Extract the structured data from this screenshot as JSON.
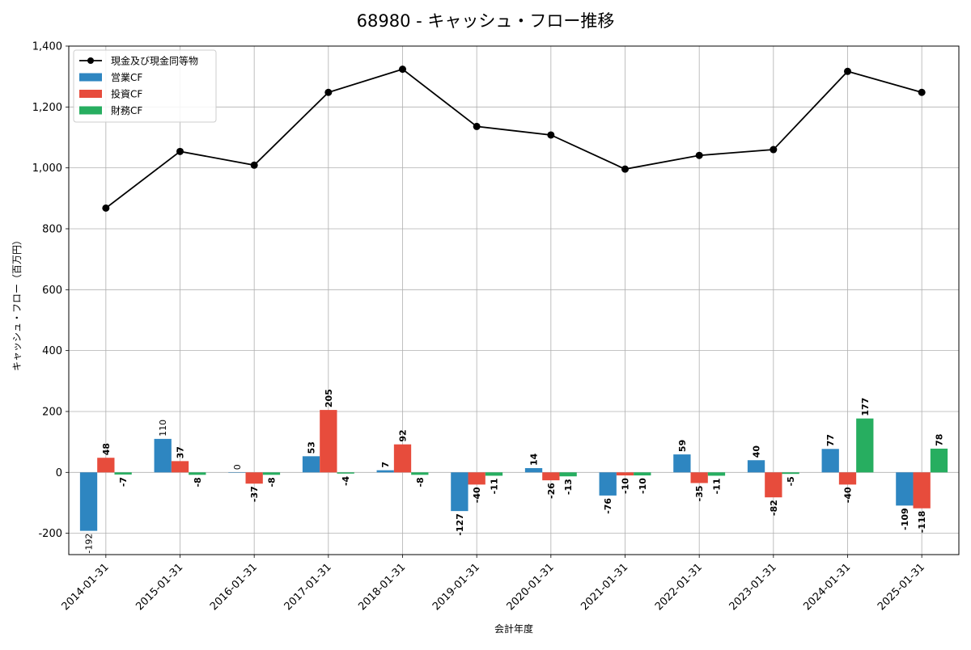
{
  "chart_data": {
    "type": "bar",
    "title": "68980 - キャッシュ・フロー推移",
    "xlabel": "会計年度",
    "ylabel": "キャッシュ・フロー（百万円）",
    "ylim": [
      -270,
      1400
    ],
    "yticks": [
      -200,
      0,
      200,
      400,
      600,
      800,
      1000,
      1200,
      1400
    ],
    "ytick_labels": [
      "-200",
      "0",
      "200",
      "400",
      "600",
      "800",
      "1,000",
      "1,200",
      "1,400"
    ],
    "grid": true,
    "legend_position": "top-left",
    "categories": [
      "2014-01-31",
      "2015-01-31",
      "2016-01-31",
      "2017-01-31",
      "2018-01-31",
      "2019-01-31",
      "2020-01-31",
      "2021-01-31",
      "2022-01-31",
      "2023-01-31",
      "2024-01-31",
      "2025-01-31"
    ],
    "line": {
      "name": "現金及び現金同等物",
      "color": "#000000",
      "values": [
        868,
        1054,
        1009,
        1248,
        1324,
        1136,
        1108,
        996,
        1041,
        1060,
        1317,
        1248
      ]
    },
    "series": [
      {
        "name": "営業CF",
        "color": "#2e86c1",
        "values": [
          -192,
          110,
          0,
          53,
          7,
          -127,
          14,
          -76,
          59,
          40,
          77,
          -109
        ],
        "labels": [
          "-192",
          "110",
          "0",
          "53",
          "7",
          "-127",
          "14",
          "-76",
          "59",
          "40",
          "77",
          "-109"
        ]
      },
      {
        "name": "投資CF",
        "color": "#e74c3c",
        "values": [
          48,
          37,
          -37,
          205,
          92,
          -40,
          -26,
          -10,
          -35,
          -82,
          -40,
          -118
        ],
        "labels": [
          "48",
          "37",
          "-37",
          "205",
          "92",
          "-40",
          "-26",
          "-10",
          "-35",
          "-82",
          "-40",
          "-118"
        ]
      },
      {
        "name": "財務CF",
        "color": "#27ae60",
        "values": [
          -7,
          -8,
          -8,
          -4,
          -8,
          -11,
          -13,
          -10,
          -11,
          -5,
          177,
          78
        ],
        "labels": [
          "-7",
          "-8",
          "-8",
          "-4",
          "-8",
          "-11",
          "-13",
          "-10",
          "-11",
          "-5",
          "177",
          "78"
        ]
      }
    ]
  }
}
